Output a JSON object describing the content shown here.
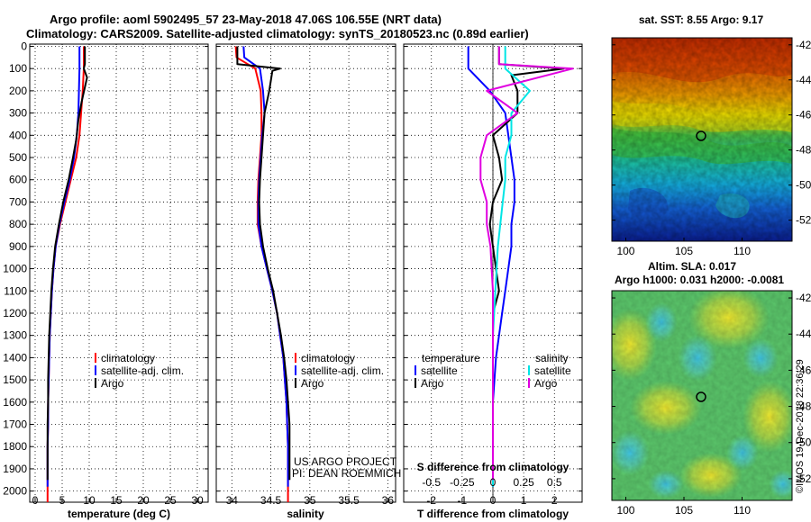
{
  "header": {
    "title_line1": "Argo profile: aoml 5902495_57 23-May-2018 47.06S 106.55E (NRT data)",
    "title_line2": "Climatology: CARS2009. Satellite-adjusted climatology: synTS_20180523.nc (0.89d earlier)"
  },
  "panel_temperature": {
    "xlabel": "temperature (deg C)",
    "xticks": [
      "0",
      "5",
      "10",
      "15",
      "20",
      "25",
      "30"
    ],
    "legend": [
      "climatology",
      "satellite-adj. clim.",
      "Argo"
    ]
  },
  "panel_salinity": {
    "xlabel": "salinity",
    "xticks": [
      "34",
      "34.5",
      "35",
      "35.5",
      "36"
    ],
    "legend": [
      "climatology",
      "satellite-adj. clim.",
      "Argo"
    ],
    "credit_line1": "US ARGO PROJECT",
    "credit_line2": "PI: DEAN ROEMMICH"
  },
  "panel_difference": {
    "xlabel": "T difference from climatology",
    "top_label": "S difference from climatology",
    "xticks": [
      "-2",
      "-1",
      "0",
      "1",
      "2"
    ],
    "s_ticks": [
      "-0.5",
      "-0.25",
      "0",
      "0.25",
      "0.5"
    ],
    "legend_left_title": "temperature",
    "legend_left": [
      "satellite",
      "Argo"
    ],
    "legend_right_title": "salinity",
    "legend_right": [
      "satellite",
      "Argo"
    ]
  },
  "depth_ticks": [
    "0",
    "100",
    "200",
    "300",
    "400",
    "500",
    "600",
    "700",
    "800",
    "900",
    "1000",
    "1100",
    "1200",
    "1300",
    "1400",
    "1500",
    "1600",
    "1700",
    "1800",
    "1900",
    "2000"
  ],
  "map_sst": {
    "title": "sat. SST: 8.55 Argo: 9.17",
    "lat_ticks": [
      "-42",
      "-44",
      "-46",
      "-48",
      "-50",
      "-52"
    ],
    "lon_ticks": [
      "100",
      "105",
      "110"
    ]
  },
  "map_sla": {
    "title_line1": "Altim. SLA: 0.017",
    "title_line2": "Argo h1000: 0.031 h2000: -0.0081",
    "lat_ticks": [
      "-42",
      "-44",
      "-46",
      "-48",
      "-50",
      "-52"
    ],
    "lon_ticks": [
      "100",
      "105",
      "110"
    ]
  },
  "side_note": "©IMOS 19-Dec-2018 22:36:29",
  "colors": {
    "climatology": "#ff0000",
    "satellite": "#0000ff",
    "argo": "#000000",
    "sat_salinity": "#00e5e5",
    "argo_salinity": "#e000e0"
  },
  "chart_data": [
    {
      "type": "line",
      "name": "temperature profile",
      "xlabel": "temperature (deg C)",
      "ylabel": "",
      "xlim": [
        -1,
        32
      ],
      "ylim": [
        2050,
        -10
      ],
      "series": [
        {
          "name": "climatology",
          "color": "#ff0000",
          "x": [
            9.0,
            9.0,
            8.8,
            8.5,
            8.2,
            7.6,
            6.6,
            5.6,
            4.6,
            3.8,
            3.4,
            3.1,
            2.9,
            2.7,
            2.6,
            2.5,
            2.4,
            2.4,
            2.3,
            2.3,
            2.3
          ],
          "y": [
            0,
            100,
            200,
            300,
            400,
            500,
            600,
            700,
            800,
            900,
            1000,
            1100,
            1200,
            1300,
            1400,
            1500,
            1600,
            1700,
            1800,
            1900,
            2050
          ]
        },
        {
          "name": "satellite-adj. clim.",
          "color": "#0000ff",
          "x": [
            8.2,
            8.2,
            8.1,
            8.0,
            7.7,
            7.2,
            6.4,
            5.4,
            4.5,
            3.8,
            3.4,
            3.1,
            2.9,
            2.7,
            2.6,
            2.5,
            2.4,
            2.4,
            2.3,
            2.3
          ],
          "y": [
            0,
            100,
            200,
            300,
            400,
            500,
            600,
            700,
            800,
            900,
            1000,
            1100,
            1200,
            1300,
            1400,
            1500,
            1600,
            1700,
            1800,
            1980
          ]
        },
        {
          "name": "Argo",
          "color": "#000000",
          "x": [
            9.2,
            9.2,
            9.0,
            9.6,
            8.6,
            8.0,
            7.6,
            7.0,
            6.2,
            5.2,
            4.4,
            3.7,
            3.3,
            3.0,
            2.8,
            2.6,
            2.5,
            2.4,
            2.4,
            2.3,
            2.3,
            2.3
          ],
          "y": [
            0,
            80,
            100,
            140,
            250,
            330,
            420,
            500,
            600,
            700,
            800,
            900,
            1000,
            1100,
            1200,
            1300,
            1400,
            1500,
            1600,
            1700,
            1800,
            1950
          ]
        }
      ]
    },
    {
      "type": "line",
      "name": "salinity profile",
      "xlabel": "salinity",
      "ylabel": "",
      "xlim": [
        33.8,
        36.1
      ],
      "ylim": [
        2050,
        -10
      ],
      "series": [
        {
          "name": "climatology",
          "color": "#ff0000",
          "x": [
            34.05,
            34.06,
            34.3,
            34.37,
            34.38,
            34.38,
            34.36,
            34.34,
            34.33,
            34.33,
            34.38,
            34.45,
            34.52,
            34.58,
            34.62,
            34.66,
            34.68,
            34.7,
            34.71,
            34.72,
            34.72
          ],
          "y": [
            0,
            50,
            100,
            200,
            300,
            400,
            500,
            600,
            700,
            800,
            900,
            1000,
            1100,
            1200,
            1300,
            1400,
            1500,
            1600,
            1700,
            1800,
            2050
          ]
        },
        {
          "name": "satellite-adj. clim.",
          "color": "#0000ff",
          "x": [
            34.15,
            34.16,
            34.36,
            34.4,
            34.42,
            34.39,
            34.37,
            34.35,
            34.34,
            34.34,
            34.38,
            34.45,
            34.52,
            34.58,
            34.62,
            34.66,
            34.68,
            34.7,
            34.71,
            34.72,
            34.72
          ],
          "y": [
            0,
            50,
            100,
            200,
            300,
            400,
            500,
            600,
            700,
            800,
            900,
            1000,
            1100,
            1200,
            1300,
            1400,
            1500,
            1600,
            1700,
            1800,
            1980
          ]
        },
        {
          "name": "Argo",
          "color": "#000000",
          "x": [
            34.07,
            34.07,
            34.62,
            34.52,
            34.48,
            34.42,
            34.4,
            34.38,
            34.36,
            34.35,
            34.36,
            34.4,
            34.46,
            34.53,
            34.58,
            34.63,
            34.67,
            34.7,
            34.72,
            34.74,
            34.74,
            34.74
          ],
          "y": [
            0,
            80,
            100,
            110,
            200,
            300,
            400,
            500,
            600,
            700,
            800,
            900,
            1000,
            1100,
            1200,
            1300,
            1400,
            1500,
            1600,
            1700,
            1800,
            1950
          ]
        }
      ]
    },
    {
      "type": "line",
      "name": "difference from climatology",
      "xlabel": "T difference from climatology",
      "top_xlabel": "S difference from climatology",
      "xlim": [
        -2.9,
        2.9
      ],
      "top_xlim": [
        -0.725,
        0.725
      ],
      "ylim": [
        2050,
        -10
      ],
      "series": [
        {
          "name": "temperature satellite",
          "color": "#0000ff",
          "x": [
            -0.8,
            -0.8,
            -0.1,
            0.4,
            0.5,
            0.6,
            0.7,
            0.7,
            0.6,
            0.6,
            0.5,
            0.4,
            0.3,
            0.2,
            0.1,
            0.05,
            0.0,
            0.0,
            0.0,
            0.0
          ],
          "y": [
            0,
            100,
            200,
            300,
            400,
            500,
            600,
            700,
            800,
            900,
            1000,
            1100,
            1200,
            1300,
            1400,
            1500,
            1600,
            1700,
            1800,
            1980
          ]
        },
        {
          "name": "temperature Argo",
          "color": "#000000",
          "x": [
            0.2,
            0.2,
            2.3,
            0.6,
            0.8,
            0.8,
            0.0,
            0.2,
            0.3,
            0.0,
            -0.1,
            0.0,
            0.1,
            0.2,
            0.0,
            0.0,
            0.0,
            0.0,
            0.0,
            0.0,
            0.0,
            0.0
          ],
          "y": [
            0,
            80,
            100,
            130,
            200,
            300,
            400,
            500,
            600,
            700,
            800,
            900,
            1000,
            1100,
            1200,
            1300,
            1400,
            1500,
            1600,
            1700,
            1800,
            1950
          ]
        },
        {
          "name": "salinity satellite",
          "color": "#00e5e5",
          "x": [
            0.1,
            0.1,
            0.3,
            0.15,
            0.15,
            0.1,
            0.1,
            0.08,
            0.06,
            0.04,
            0.03,
            0.02,
            0.01,
            0.0,
            0.0,
            0.0,
            0.0,
            0.0,
            0.0
          ],
          "y": [
            0,
            100,
            200,
            300,
            400,
            500,
            600,
            700,
            800,
            900,
            1000,
            1100,
            1200,
            1300,
            1400,
            1500,
            1600,
            1700,
            1980
          ]
        },
        {
          "name": "salinity Argo",
          "color": "#e000e0",
          "x": [
            0.05,
            0.05,
            0.65,
            -0.05,
            0.2,
            -0.05,
            -0.1,
            -0.1,
            -0.05,
            -0.05,
            -0.02,
            -0.01,
            0.0,
            0.0,
            0.0,
            0.0,
            0.0,
            0.0,
            0.0,
            0.0
          ],
          "y": [
            0,
            80,
            100,
            200,
            300,
            400,
            500,
            600,
            700,
            800,
            900,
            1000,
            1100,
            1200,
            1300,
            1400,
            1500,
            1600,
            1700,
            1950
          ]
        }
      ]
    },
    {
      "type": "heatmap",
      "name": "satellite SST map",
      "title": "sat. SST: 8.55 Argo: 9.17",
      "xlim": [
        98.8,
        114.3
      ],
      "ylim": [
        -53.2,
        -41.6
      ],
      "marker": {
        "lon": 106.55,
        "lat": -47.06
      }
    },
    {
      "type": "heatmap",
      "name": "altimeter SLA map",
      "title": "Altim. SLA: 0.017",
      "xlim": [
        98.8,
        114.3
      ],
      "ylim": [
        -53.2,
        -41.6
      ],
      "marker": {
        "lon": 106.55,
        "lat": -47.06
      }
    }
  ]
}
